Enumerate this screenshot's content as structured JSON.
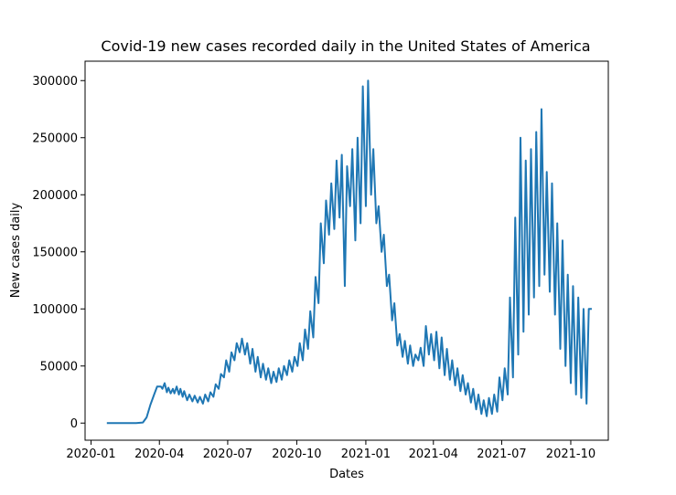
{
  "chart_data": {
    "type": "line",
    "title": "Covid-19 new cases recorded daily in the United States of America",
    "xlabel": "Dates",
    "ylabel": "New cases daily",
    "x_ticks": [
      "2020-01",
      "2020-04",
      "2020-07",
      "2020-10",
      "2021-01",
      "2021-04",
      "2021-07",
      "2021-10"
    ],
    "y_ticks": [
      "0",
      "50000",
      "100000",
      "150000",
      "200000",
      "250000",
      "300000"
    ],
    "xlim": [
      "2019-12-24",
      "2021-11-20"
    ],
    "ylim": [
      -15000,
      317000
    ],
    "grid": false,
    "line_color": "#1f77b4",
    "series": [
      {
        "x": [
          "2020-01-22",
          "2020-02-15",
          "2020-03-01",
          "2020-03-10",
          "2020-03-15",
          "2020-03-20",
          "2020-03-25",
          "2020-03-29",
          "2020-04-03",
          "2020-04-05",
          "2020-04-08",
          "2020-04-11",
          "2020-04-13",
          "2020-04-16",
          "2020-04-19",
          "2020-04-21",
          "2020-04-24",
          "2020-04-27",
          "2020-04-29",
          "2020-05-02",
          "2020-05-04",
          "2020-05-08",
          "2020-05-11",
          "2020-05-15",
          "2020-05-18",
          "2020-05-22",
          "2020-05-25",
          "2020-05-29",
          "2020-06-01",
          "2020-06-05",
          "2020-06-08",
          "2020-06-12",
          "2020-06-15",
          "2020-06-19",
          "2020-06-22",
          "2020-06-26",
          "2020-06-29",
          "2020-07-03",
          "2020-07-06",
          "2020-07-10",
          "2020-07-13",
          "2020-07-17",
          "2020-07-20",
          "2020-07-24",
          "2020-07-27",
          "2020-07-31",
          "2020-08-03",
          "2020-08-07",
          "2020-08-10",
          "2020-08-14",
          "2020-08-17",
          "2020-08-21",
          "2020-08-24",
          "2020-08-28",
          "2020-08-31",
          "2020-09-04",
          "2020-09-07",
          "2020-09-11",
          "2020-09-14",
          "2020-09-18",
          "2020-09-21",
          "2020-09-25",
          "2020-09-28",
          "2020-10-02",
          "2020-10-05",
          "2020-10-09",
          "2020-10-12",
          "2020-10-16",
          "2020-10-19",
          "2020-10-23",
          "2020-10-26",
          "2020-10-30",
          "2020-11-02",
          "2020-11-06",
          "2020-11-09",
          "2020-11-13",
          "2020-11-16",
          "2020-11-20",
          "2020-11-23",
          "2020-11-27",
          "2020-11-30",
          "2020-12-04",
          "2020-12-07",
          "2020-12-11",
          "2020-12-14",
          "2020-12-18",
          "2020-12-21",
          "2020-12-25",
          "2020-12-28",
          "2021-01-01",
          "2021-01-04",
          "2021-01-08",
          "2021-01-11",
          "2021-01-15",
          "2021-01-18",
          "2021-01-22",
          "2021-01-25",
          "2021-01-29",
          "2021-02-01",
          "2021-02-05",
          "2021-02-08",
          "2021-02-12",
          "2021-02-15",
          "2021-02-19",
          "2021-02-22",
          "2021-02-26",
          "2021-03-01",
          "2021-03-05",
          "2021-03-08",
          "2021-03-12",
          "2021-03-15",
          "2021-03-19",
          "2021-03-22",
          "2021-03-26",
          "2021-03-29",
          "2021-04-02",
          "2021-04-05",
          "2021-04-09",
          "2021-04-12",
          "2021-04-16",
          "2021-04-19",
          "2021-04-23",
          "2021-04-26",
          "2021-04-30",
          "2021-05-03",
          "2021-05-07",
          "2021-05-10",
          "2021-05-14",
          "2021-05-17",
          "2021-05-21",
          "2021-05-24",
          "2021-05-28",
          "2021-05-31",
          "2021-06-04",
          "2021-06-07",
          "2021-06-11",
          "2021-06-14",
          "2021-06-18",
          "2021-06-21",
          "2021-06-25",
          "2021-06-28",
          "2021-07-02",
          "2021-07-05",
          "2021-07-09",
          "2021-07-12",
          "2021-07-16",
          "2021-07-19",
          "2021-07-23",
          "2021-07-26",
          "2021-07-30",
          "2021-08-02",
          "2021-08-06",
          "2021-08-09",
          "2021-08-13",
          "2021-08-16",
          "2021-08-20",
          "2021-08-23",
          "2021-08-27",
          "2021-08-30",
          "2021-09-03",
          "2021-09-06",
          "2021-09-10",
          "2021-09-13",
          "2021-09-17",
          "2021-09-20",
          "2021-09-24",
          "2021-09-27",
          "2021-10-01",
          "2021-10-04",
          "2021-10-08",
          "2021-10-11",
          "2021-10-15",
          "2021-10-18",
          "2021-10-22",
          "2021-10-25",
          "2021-10-29"
        ],
        "values": [
          0,
          0,
          0,
          500,
          5000,
          16000,
          25000,
          32000,
          32000,
          30000,
          35000,
          27000,
          31000,
          26000,
          30000,
          26000,
          32000,
          25000,
          30000,
          23000,
          28000,
          20000,
          25000,
          19000,
          24000,
          18000,
          23000,
          17000,
          25000,
          19000,
          27000,
          23000,
          34000,
          30000,
          43000,
          40000,
          55000,
          45000,
          62000,
          55000,
          70000,
          62000,
          74000,
          60000,
          70000,
          52000,
          65000,
          45000,
          58000,
          40000,
          52000,
          38000,
          48000,
          35000,
          45000,
          36000,
          48000,
          38000,
          50000,
          42000,
          55000,
          45000,
          58000,
          50000,
          70000,
          55000,
          82000,
          65000,
          98000,
          75000,
          128000,
          105000,
          175000,
          140000,
          195000,
          165000,
          210000,
          170000,
          230000,
          180000,
          235000,
          120000,
          225000,
          190000,
          240000,
          160000,
          250000,
          175000,
          295000,
          190000,
          300000,
          200000,
          240000,
          175000,
          190000,
          150000,
          165000,
          120000,
          130000,
          90000,
          105000,
          68000,
          78000,
          58000,
          72000,
          52000,
          68000,
          50000,
          60000,
          55000,
          66000,
          50000,
          85000,
          60000,
          78000,
          55000,
          80000,
          48000,
          75000,
          42000,
          65000,
          38000,
          55000,
          33000,
          48000,
          28000,
          42000,
          25000,
          35000,
          18000,
          30000,
          12000,
          25000,
          8000,
          20000,
          6000,
          22000,
          8000,
          25000,
          10000,
          40000,
          20000,
          48000,
          25000,
          110000,
          40000,
          180000,
          60000,
          250000,
          80000,
          230000,
          95000,
          240000,
          110000,
          255000,
          120000,
          275000,
          130000,
          220000,
          115000,
          210000,
          95000,
          175000,
          65000,
          160000,
          50000,
          130000,
          35000,
          120000,
          25000,
          110000,
          22000,
          100000,
          17000,
          100000,
          100000
        ]
      }
    ]
  }
}
